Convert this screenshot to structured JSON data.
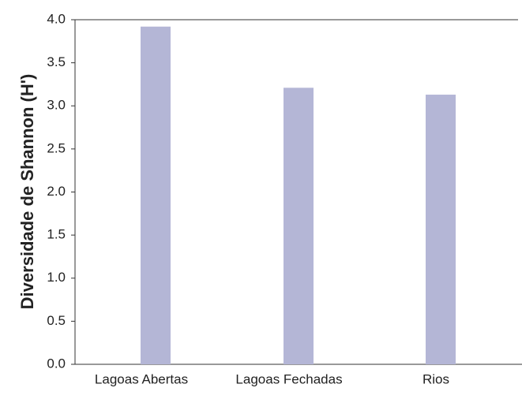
{
  "chart_data": {
    "type": "bar",
    "y_label": "Diversidade de Shannon (H')",
    "categories": [
      "Lagoas Abertas",
      "Lagoas Fechadas",
      "Rios"
    ],
    "values": [
      3.92,
      3.21,
      3.13
    ],
    "color": "#b4b6d6",
    "ylim": [
      0,
      4
    ],
    "yticks": [
      {
        "value": 0,
        "label": "0.0"
      },
      0.5,
      {
        "value": 1,
        "label": "1.0"
      },
      1.5,
      {
        "value": 2,
        "label": "2.0"
      },
      2.5,
      {
        "value": 3,
        "label": "3.0"
      },
      3.5,
      {
        "value": 4,
        "label": "4.0"
      }
    ],
    "grid": false
  }
}
